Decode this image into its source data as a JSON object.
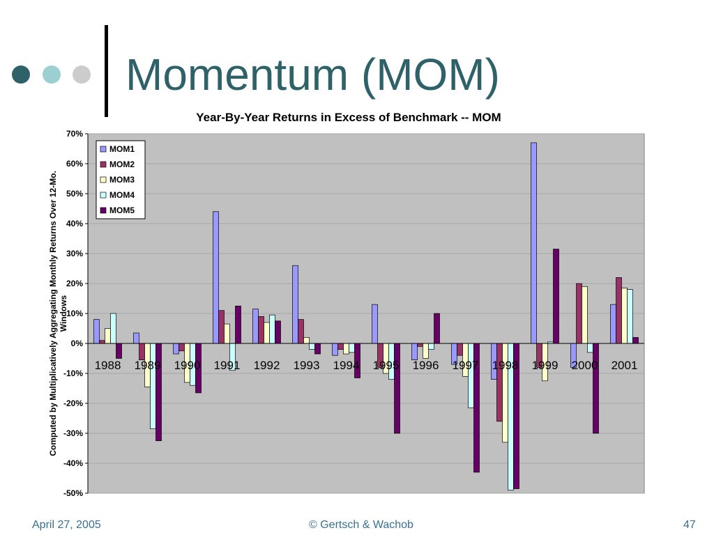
{
  "slide": {
    "title": "Momentum (MOM)",
    "footer_date": "April 27, 2005",
    "footer_copyright": "© Gertsch & Wachob",
    "page_number": "47",
    "colors": {
      "title": "#2e6168",
      "dot1": "#2e6168",
      "dot2": "#9ccfd2",
      "dot3": "#cccccc",
      "footer": "#3a6f8f"
    }
  },
  "chart_data": {
    "type": "bar",
    "title": "Year-By-Year Returns in Excess of Benchmark -- MOM",
    "ylabel": "Computed by Multiplicatively Aggregating Monthly Returns Over 12-Mo. Windows",
    "xlabel": "",
    "ylim": [
      -50,
      70
    ],
    "y_ticks": [
      "70%",
      "60%",
      "50%",
      "40%",
      "30%",
      "20%",
      "10%",
      "0%",
      "-10%",
      "-20%",
      "-30%",
      "-40%",
      "-50%"
    ],
    "grid": true,
    "legend_position": "top-left",
    "categories": [
      "1988",
      "1989",
      "1990",
      "1991",
      "1992",
      "1993",
      "1994",
      "1995",
      "1996",
      "1997",
      "1998",
      "1999",
      "2000",
      "2001"
    ],
    "series": [
      {
        "name": "MOM1",
        "color": "#9999ff",
        "values": [
          8,
          3.5,
          -3.5,
          44,
          11.5,
          26,
          -4,
          13,
          -5.5,
          -7,
          -12,
          67,
          -8,
          13
        ]
      },
      {
        "name": "MOM2",
        "color": "#993366",
        "values": [
          1,
          -5.5,
          -2.5,
          11,
          9,
          8,
          -2,
          -8,
          -1,
          -4,
          -26,
          -8,
          20,
          22
        ]
      },
      {
        "name": "MOM3",
        "color": "#ffffcc",
        "values": [
          5,
          -14.5,
          -13,
          6.5,
          7,
          2,
          -3.5,
          -10,
          -5,
          -11,
          -33,
          -12.5,
          19,
          18.5
        ]
      },
      {
        "name": "MOM4",
        "color": "#ccffff",
        "values": [
          10,
          -28.5,
          -14,
          -9,
          9.5,
          -2,
          -3,
          -12,
          -2,
          -21.5,
          -49,
          0.5,
          -3,
          18
        ]
      },
      {
        "name": "MOM5",
        "color": "#660066",
        "values": [
          -5,
          -32.5,
          -16.5,
          12.5,
          7.5,
          -3.5,
          -11.5,
          -30,
          10,
          -43,
          -48.5,
          31.5,
          -30,
          2
        ]
      }
    ]
  }
}
